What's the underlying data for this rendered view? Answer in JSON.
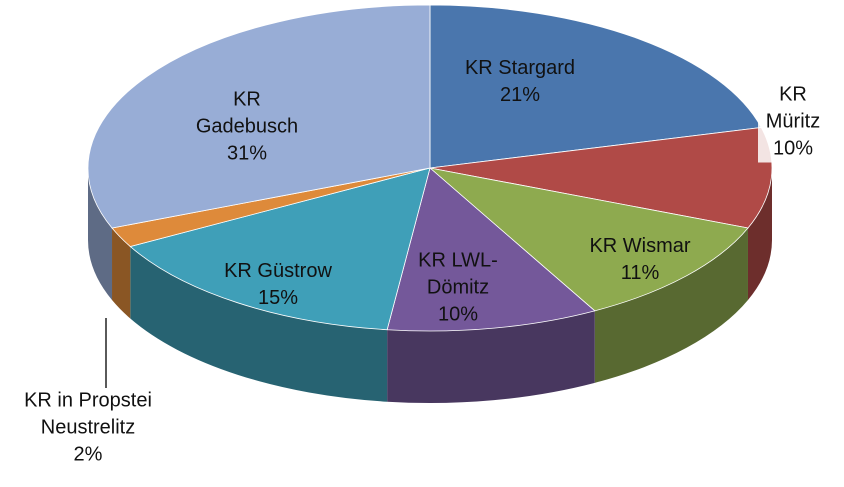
{
  "chart_data": {
    "type": "pie3d",
    "categories": [
      "KR Stargard",
      "KR Müritz",
      "KR Wismar",
      "KR LWL-Dömitz",
      "KR Güstrow",
      "KR in Propstei Neustrelitz",
      "KR Gadebusch"
    ],
    "values": [
      21,
      10,
      11,
      10,
      15,
      2,
      31
    ],
    "value_labels": [
      "21%",
      "10%",
      "11%",
      "10%",
      "15%",
      "2%",
      "31%"
    ],
    "colors": [
      "#4a76ad",
      "#b04a47",
      "#8eaa4f",
      "#74589a",
      "#3f9fb8",
      "#de8a3a",
      "#98add6"
    ]
  }
}
